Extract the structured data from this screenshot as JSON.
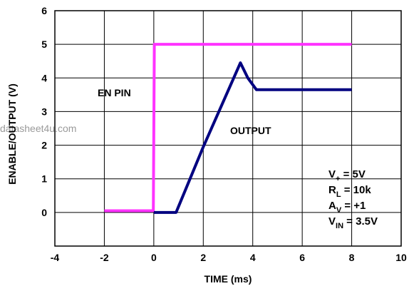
{
  "watermark": "datasheet4u.com",
  "chart_data": {
    "type": "line",
    "title": "",
    "xlabel": "TIME (ms)",
    "ylabel": "ENABLE/OUTPUT (V)",
    "xlim": [
      -4,
      10
    ],
    "ylim": [
      -1,
      6
    ],
    "xticks": [
      -4,
      -2,
      0,
      2,
      4,
      6,
      8,
      10
    ],
    "yticks": [
      0,
      1,
      2,
      3,
      4,
      5,
      6
    ],
    "grid": true,
    "series": [
      {
        "name": "EN PIN",
        "color": "#ff33ff",
        "x": [
          -2,
          -0.02,
          0.02,
          8
        ],
        "y": [
          0.05,
          0.05,
          5.0,
          5.0
        ]
      },
      {
        "name": "OUTPUT",
        "color": "#000080",
        "x": [
          0,
          0.9,
          2.0,
          3.5,
          3.8,
          4.15,
          5,
          8
        ],
        "y": [
          0.0,
          0.0,
          1.95,
          4.45,
          4.0,
          3.65,
          3.65,
          3.65
        ]
      }
    ],
    "conditions": [
      {
        "main": "V",
        "sub": "+",
        "rest": " = 5V"
      },
      {
        "main": "R",
        "sub": "L",
        "rest": " = 10k"
      },
      {
        "main": "A",
        "sub": "V",
        "rest": " = +1"
      },
      {
        "main": "V",
        "sub": "IN",
        "rest": " = 3.5V"
      }
    ]
  }
}
